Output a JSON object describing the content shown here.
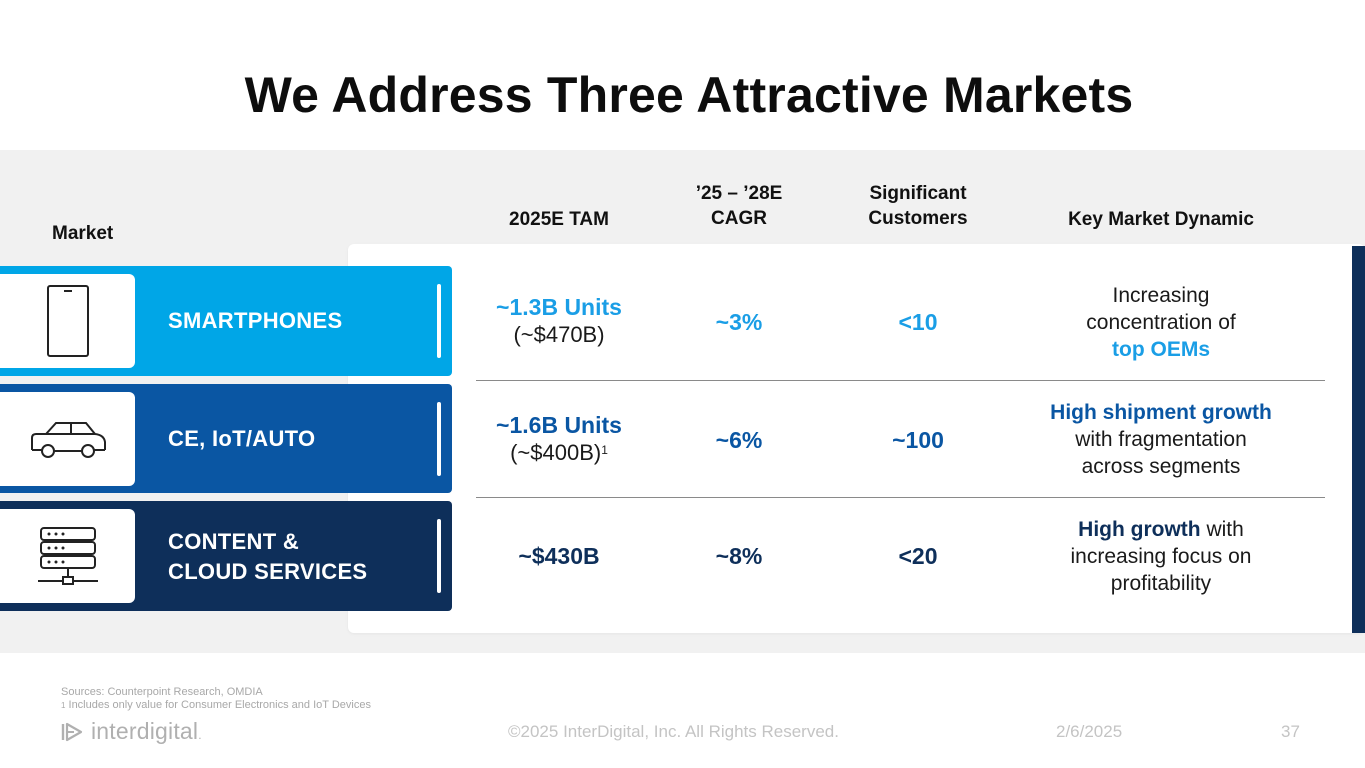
{
  "slide": {
    "title": "We Address Three Attractive Markets",
    "headers": {
      "market": "Market",
      "tam": "2025E TAM",
      "cagr_line1": "’25 – ’28E",
      "cagr_line2": "CAGR",
      "customers_line1": "Significant",
      "customers_line2": "Customers",
      "dynamic": "Key Market Dynamic"
    },
    "rows": [
      {
        "market": "SMARTPHONES",
        "icon": "smartphone-icon",
        "tam_main": "~1.3B Units",
        "tam_sub": "(~$470B)",
        "cagr": "~3%",
        "customers": "<10",
        "dynamic_line1": "Increasing",
        "dynamic_line2": "concentration of",
        "dynamic_highlight": "top OEMs"
      },
      {
        "market": "CE, IoT/AUTO",
        "icon": "car-icon",
        "tam_main": "~1.6B Units",
        "tam_sub": "(~$400B)",
        "tam_footnote_mark": "1",
        "cagr": "~6%",
        "customers": "~100",
        "dynamic_highlight": "High shipment growth",
        "dynamic_line2": "with fragmentation",
        "dynamic_line3": "across segments"
      },
      {
        "market_line1": "CONTENT &",
        "market_line2": "CLOUD SERVICES",
        "icon": "server-icon",
        "tam_main": "~$430B",
        "cagr": "~8%",
        "customers": "<20",
        "dynamic_highlight": "High growth",
        "dynamic_line1_rest": " with",
        "dynamic_line2": "increasing focus on",
        "dynamic_line3": "profitability"
      }
    ],
    "colors": {
      "light_blue": "#00a6e7",
      "mid_blue": "#0a56a3",
      "navy": "#0e2f5a"
    }
  },
  "footer": {
    "sources": "Sources: Counterpoint Research, OMDIA",
    "footnote_mark": "1",
    "footnote": " Includes only value for Consumer Electronics and IoT Devices",
    "logo_text": "interdigital",
    "logo_dot": ".",
    "copyright": "©2025 InterDigital, Inc. All Rights Reserved.",
    "date": "2/6/2025",
    "page_number": "37"
  }
}
